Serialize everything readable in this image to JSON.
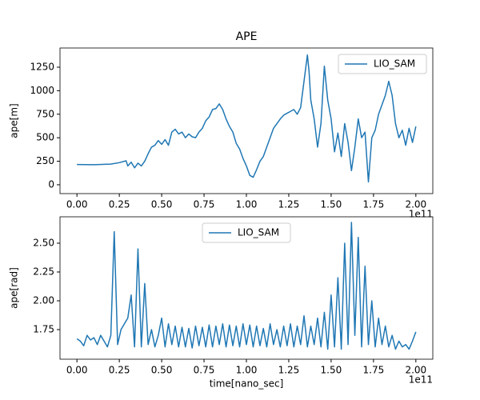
{
  "chart_data": [
    {
      "type": "line",
      "title": "APE",
      "ylabel": "ape[m]",
      "x_offset_label": "1e11",
      "legend": "upper right",
      "xlim": [
        -0.1,
        2.1
      ],
      "ylim": [
        -94,
        1454
      ],
      "xticks": [
        {
          "value": 0,
          "label": "0.00"
        },
        0.25,
        {
          "value": 0.5,
          "label": "0.50"
        },
        0.75,
        {
          "value": 1,
          "label": "1.00"
        },
        1.25,
        {
          "value": 1.5,
          "label": "1.50"
        },
        1.75,
        {
          "value": 2,
          "label": "2.00"
        }
      ],
      "yticks": [
        0,
        250,
        500,
        750,
        1000,
        1250
      ],
      "x": [
        0,
        0.1,
        0.2,
        0.25,
        0.29,
        0.3,
        0.32,
        0.34,
        0.36,
        0.38,
        0.4,
        0.42,
        0.44,
        0.46,
        0.48,
        0.5,
        0.52,
        0.54,
        0.56,
        0.58,
        0.6,
        0.62,
        0.64,
        0.66,
        0.68,
        0.7,
        0.72,
        0.74,
        0.76,
        0.78,
        0.8,
        0.82,
        0.84,
        0.86,
        0.88,
        0.9,
        0.92,
        0.94,
        0.96,
        0.98,
        1.0,
        1.02,
        1.04,
        1.06,
        1.08,
        1.1,
        1.12,
        1.14,
        1.16,
        1.18,
        1.2,
        1.22,
        1.24,
        1.26,
        1.28,
        1.3,
        1.32,
        1.34,
        1.36,
        1.37,
        1.38,
        1.4,
        1.42,
        1.44,
        1.46,
        1.48,
        1.5,
        1.52,
        1.54,
        1.56,
        1.58,
        1.6,
        1.62,
        1.64,
        1.66,
        1.68,
        1.7,
        1.72,
        1.74,
        1.76,
        1.78,
        1.8,
        1.82,
        1.84,
        1.86,
        1.88,
        1.9,
        1.92,
        1.94,
        1.96,
        1.98,
        2.0
      ],
      "series": [
        {
          "name": "LIO_SAM",
          "color": "#1f77b4",
          "values": [
            215,
            213,
            220,
            235,
            255,
            200,
            240,
            180,
            230,
            200,
            250,
            330,
            400,
            420,
            470,
            430,
            480,
            420,
            560,
            590,
            540,
            560,
            500,
            540,
            510,
            500,
            560,
            600,
            680,
            720,
            800,
            810,
            860,
            800,
            700,
            620,
            560,
            440,
            380,
            280,
            200,
            100,
            80,
            160,
            250,
            300,
            400,
            500,
            600,
            650,
            700,
            740,
            760,
            780,
            800,
            750,
            820,
            1100,
            1380,
            1200,
            900,
            700,
            400,
            650,
            1260,
            900,
            700,
            350,
            550,
            300,
            650,
            450,
            150,
            400,
            700,
            500,
            560,
            30,
            500,
            580,
            750,
            850,
            950,
            1100,
            950,
            650,
            500,
            580,
            420,
            600,
            450,
            620
          ]
        }
      ]
    },
    {
      "type": "line",
      "xlabel": "time[nano_sec]",
      "ylabel": "ape[rad]",
      "x_offset_label": "1e11",
      "legend": "upper center",
      "xlim": [
        -0.1,
        2.1
      ],
      "ylim": [
        1.493,
        2.729
      ],
      "xticks": [
        {
          "value": 0,
          "label": "0.00"
        },
        0.25,
        {
          "value": 0.5,
          "label": "0.50"
        },
        0.75,
        {
          "value": 1,
          "label": "1.00"
        },
        1.25,
        {
          "value": 1.5,
          "label": "1.50"
        },
        1.75,
        {
          "value": 2,
          "label": "2.00"
        }
      ],
      "yticks": [
        1.75,
        {
          "value": 2,
          "label": "2.00"
        },
        2.25,
        {
          "value": 2.5,
          "label": "2.50"
        }
      ],
      "x": [
        0,
        0.02,
        0.04,
        0.06,
        0.08,
        0.1,
        0.12,
        0.14,
        0.16,
        0.18,
        0.2,
        0.22,
        0.24,
        0.26,
        0.28,
        0.3,
        0.32,
        0.34,
        0.36,
        0.38,
        0.4,
        0.42,
        0.44,
        0.46,
        0.48,
        0.5,
        0.52,
        0.54,
        0.56,
        0.58,
        0.6,
        0.62,
        0.64,
        0.66,
        0.68,
        0.7,
        0.72,
        0.74,
        0.76,
        0.78,
        0.8,
        0.82,
        0.84,
        0.86,
        0.88,
        0.9,
        0.92,
        0.94,
        0.96,
        0.98,
        1.0,
        1.02,
        1.04,
        1.06,
        1.08,
        1.1,
        1.12,
        1.14,
        1.16,
        1.18,
        1.2,
        1.22,
        1.24,
        1.26,
        1.28,
        1.3,
        1.32,
        1.34,
        1.36,
        1.38,
        1.4,
        1.42,
        1.44,
        1.46,
        1.48,
        1.5,
        1.52,
        1.54,
        1.56,
        1.58,
        1.6,
        1.62,
        1.64,
        1.66,
        1.68,
        1.7,
        1.72,
        1.74,
        1.76,
        1.78,
        1.8,
        1.82,
        1.84,
        1.86,
        1.88,
        1.9,
        1.92,
        1.94,
        1.96,
        1.98,
        2.0
      ],
      "series": [
        {
          "name": "LIO_SAM",
          "color": "#1f77b4",
          "values": [
            1.67,
            1.65,
            1.61,
            1.7,
            1.66,
            1.68,
            1.62,
            1.7,
            1.65,
            1.6,
            1.7,
            2.6,
            1.62,
            1.75,
            1.8,
            1.85,
            2.05,
            1.6,
            2.45,
            1.6,
            2.15,
            1.62,
            1.75,
            1.6,
            1.7,
            1.85,
            1.6,
            1.8,
            1.62,
            1.78,
            1.6,
            1.77,
            1.6,
            1.76,
            1.59,
            1.78,
            1.61,
            1.77,
            1.6,
            1.79,
            1.6,
            1.78,
            1.62,
            1.8,
            1.6,
            1.79,
            1.61,
            1.78,
            1.6,
            1.8,
            1.62,
            1.79,
            1.6,
            1.78,
            1.61,
            1.76,
            1.6,
            1.8,
            1.62,
            1.75,
            1.6,
            1.78,
            1.61,
            1.8,
            1.6,
            1.78,
            1.62,
            1.87,
            1.6,
            1.78,
            1.62,
            1.85,
            1.6,
            1.9,
            1.58,
            2.05,
            1.6,
            2.2,
            1.58,
            2.5,
            1.62,
            2.68,
            1.7,
            2.55,
            1.6,
            2.3,
            1.62,
            2.0,
            1.6,
            1.85,
            1.62,
            1.78,
            1.6,
            1.7,
            1.58,
            1.65,
            1.6,
            1.62,
            1.58,
            1.65,
            1.73
          ]
        }
      ]
    }
  ]
}
